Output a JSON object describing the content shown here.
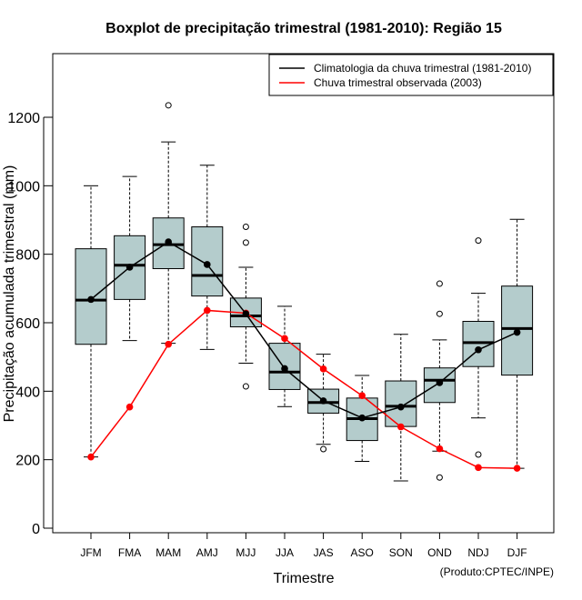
{
  "chart_data": {
    "type": "box",
    "title": "Boxplot de precipitação trimestral (1981-2010): Região 15",
    "xlabel": "Trimestre",
    "ylabel": "Precipitação acumulada trimestral (mm)",
    "credit": "(Produto:CPTEC/INPE)",
    "ylim": [
      -20,
      1380
    ],
    "yticks": [
      0,
      200,
      400,
      600,
      800,
      1000,
      1200
    ],
    "categories": [
      "JFM",
      "FMA",
      "MAM",
      "AMJ",
      "MJJ",
      "JJA",
      "JAS",
      "ASO",
      "SON",
      "OND",
      "NDJ",
      "DJF"
    ],
    "boxes": [
      {
        "min": 208,
        "q1": 537,
        "median": 666,
        "q3": 816,
        "max": 1000,
        "outliers": []
      },
      {
        "min": 548,
        "q1": 668,
        "median": 768,
        "q3": 854,
        "max": 1027,
        "outliers": []
      },
      {
        "min": 540,
        "q1": 758,
        "median": 828,
        "q3": 906,
        "max": 1128,
        "outliers": [
          1235
        ]
      },
      {
        "min": 522,
        "q1": 678,
        "median": 738,
        "q3": 880,
        "max": 1060,
        "outliers": []
      },
      {
        "min": 482,
        "q1": 588,
        "median": 620,
        "q3": 672,
        "max": 762,
        "outliers": [
          414,
          834,
          880
        ]
      },
      {
        "min": 355,
        "q1": 405,
        "median": 456,
        "q3": 540,
        "max": 648,
        "outliers": []
      },
      {
        "min": 245,
        "q1": 336,
        "median": 367,
        "q3": 406,
        "max": 508,
        "outliers": [
          231
        ]
      },
      {
        "min": 195,
        "q1": 256,
        "median": 320,
        "q3": 380,
        "max": 446,
        "outliers": []
      },
      {
        "min": 138,
        "q1": 297,
        "median": 356,
        "q3": 430,
        "max": 566,
        "outliers": []
      },
      {
        "min": 225,
        "q1": 367,
        "median": 432,
        "q3": 468,
        "max": 550,
        "outliers": [
          148,
          626,
          714
        ]
      },
      {
        "min": 322,
        "q1": 472,
        "median": 542,
        "q3": 604,
        "max": 686,
        "outliers": [
          215,
          840
        ]
      },
      {
        "min": 175,
        "q1": 447,
        "median": 583,
        "q3": 707,
        "max": 902,
        "outliers": []
      }
    ],
    "series": [
      {
        "name": "Climatologia da chuva trimestral (1981-2010)",
        "color": "#000000",
        "values": [
          668,
          762,
          836,
          770,
          626,
          466,
          372,
          322,
          354,
          425,
          521,
          572
        ]
      },
      {
        "name": "Chuva trimestral observada (2003)",
        "color": "#ff0000",
        "values": [
          208,
          354,
          537,
          636,
          628,
          554,
          465,
          387,
          296,
          232,
          177,
          175
        ]
      }
    ],
    "box_fill": "#b4cccc",
    "legend_position": "top-right"
  }
}
